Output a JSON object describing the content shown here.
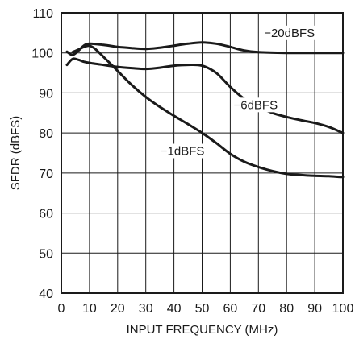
{
  "chart_data": {
    "type": "line",
    "title": "",
    "xlabel": "INPUT FREQUENCY (MHz)",
    "ylabel": "SFDR (dBFS)",
    "xlim": [
      0,
      100
    ],
    "ylim": [
      40,
      110
    ],
    "xticks": [
      0,
      10,
      20,
      30,
      40,
      50,
      60,
      70,
      80,
      90,
      100
    ],
    "yticks": [
      40,
      50,
      60,
      70,
      80,
      90,
      100,
      110
    ],
    "grid": true,
    "legend": "none",
    "series": [
      {
        "name": "−20dBFS",
        "x": [
          2,
          4,
          6,
          8,
          10,
          15,
          20,
          25,
          30,
          35,
          40,
          45,
          50,
          55,
          60,
          65,
          70,
          80,
          90,
          100
        ],
        "values": [
          100.3,
          99.5,
          100.5,
          101.8,
          102.3,
          102,
          101.5,
          101.2,
          101,
          101.3,
          101.8,
          102.3,
          102.6,
          102.3,
          101.5,
          100.6,
          100.2,
          100,
          100,
          100
        ]
      },
      {
        "name": "−6dBFS",
        "x": [
          2,
          4,
          6,
          8,
          10,
          15,
          20,
          25,
          30,
          35,
          40,
          45,
          50,
          55,
          60,
          65,
          70,
          75,
          80,
          85,
          90,
          95,
          100
        ],
        "values": [
          97,
          98.5,
          98.3,
          97.8,
          97.5,
          97,
          96.5,
          96.2,
          96,
          96.3,
          96.8,
          97,
          96.8,
          95,
          91.5,
          88.5,
          86.5,
          85,
          84,
          83.2,
          82.5,
          81.5,
          80
        ]
      },
      {
        "name": "−1dBFS",
        "x": [
          4,
          6,
          8,
          10,
          12,
          15,
          20,
          25,
          30,
          35,
          40,
          45,
          50,
          55,
          60,
          65,
          70,
          75,
          80,
          85,
          90,
          95,
          100
        ],
        "values": [
          100.2,
          100.8,
          101.5,
          101.8,
          101,
          99,
          95.5,
          92,
          89,
          86.5,
          84.3,
          82.2,
          80,
          77.5,
          74.8,
          72.8,
          71.5,
          70.5,
          69.8,
          69.5,
          69.3,
          69.2,
          69
        ]
      }
    ],
    "annotations": [
      {
        "text": "−20dBFS",
        "x": 81,
        "y": 104,
        "series": 0
      },
      {
        "text": "−6dBFS",
        "x": 69,
        "y": 86,
        "series": 1
      },
      {
        "text": "−1dBFS",
        "x": 43,
        "y": 74.5,
        "series": 2
      }
    ]
  }
}
